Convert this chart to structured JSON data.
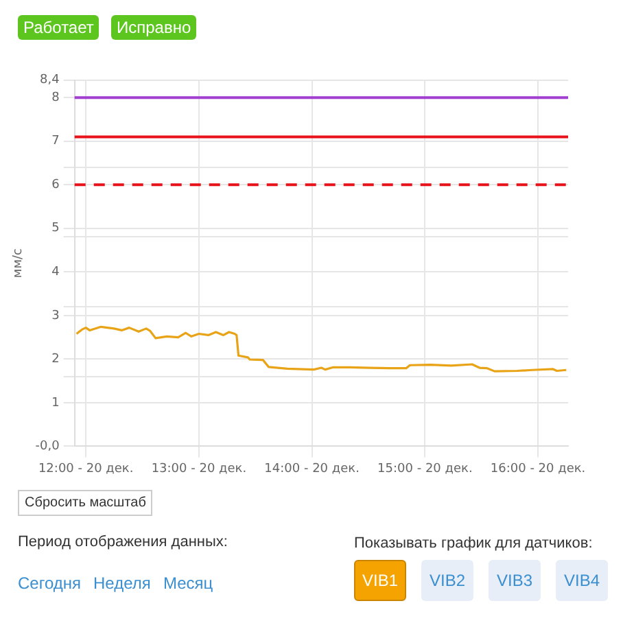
{
  "chart_data": {
    "type": "line",
    "ylabel": "мм/с",
    "x": [
      "--12-20T11:55",
      "--12-20T11:58",
      "--12-20T12:00",
      "--12-20T12:02",
      "--12-20T12:08",
      "--12-20T12:15",
      "--12-20T12:19",
      "--12-20T12:23",
      "--12-20T12:28",
      "--12-20T12:32",
      "--12-20T12:34",
      "--12-20T12:37",
      "--12-20T12:43",
      "--12-20T12:49",
      "--12-20T12:53",
      "--12-20T12:56",
      "--12-20T13:00",
      "--12-20T13:05",
      "--12-20T13:09",
      "--12-20T13:13",
      "--12-20T13:16",
      "--12-20T13:19",
      "--12-20T13:20",
      "--12-20T13:21",
      "--12-20T13:26",
      "--12-20T13:27",
      "--12-20T13:34",
      "--12-20T13:37",
      "--12-20T13:47",
      "--12-20T14:01",
      "--12-20T14:05",
      "--12-20T14:07",
      "--12-20T14:11",
      "--12-20T14:20",
      "--12-20T14:31",
      "--12-20T14:41",
      "--12-20T14:50",
      "--12-20T14:52",
      "--12-20T15:03",
      "--12-20T15:14",
      "--12-20T15:25",
      "--12-20T15:29",
      "--12-20T15:33",
      "--12-20T15:37",
      "--12-20T15:49",
      "--12-20T15:57",
      "--12-20T16:08",
      "--12-20T16:10",
      "--12-20T16:15"
    ],
    "series": [
      {
        "color": "#e8a317",
        "values": [
          2.58,
          2.68,
          2.72,
          2.66,
          2.74,
          2.7,
          2.66,
          2.72,
          2.63,
          2.7,
          2.65,
          2.48,
          2.52,
          2.5,
          2.6,
          2.52,
          2.58,
          2.55,
          2.62,
          2.55,
          2.62,
          2.58,
          2.55,
          2.08,
          2.04,
          1.99,
          1.98,
          1.82,
          1.78,
          1.76,
          1.8,
          1.76,
          1.81,
          1.81,
          1.8,
          1.79,
          1.79,
          1.86,
          1.87,
          1.85,
          1.88,
          1.8,
          1.79,
          1.72,
          1.73,
          1.75,
          1.77,
          1.73,
          1.75
        ]
      }
    ],
    "xlim": [
      "--12-20T11:54",
      "--12-20T16:16"
    ],
    "xticks": [
      {
        "value": "--12-20T12:00",
        "label": "12:00 - 20 дек."
      },
      {
        "value": "--12-20T13:00",
        "label": "13:00 - 20 дек."
      },
      {
        "value": "--12-20T14:00",
        "label": "14:00 - 20 дек."
      },
      {
        "value": "--12-20T15:00",
        "label": "15:00 - 20 дек."
      },
      {
        "value": "--12-20T16:00",
        "label": "16:00 - 20 дек."
      }
    ],
    "ylim": [
      0,
      8.4
    ],
    "yticks": [
      {
        "value": 0,
        "label": "-0,0"
      },
      1,
      {
        "value": 1.6,
        "label": null
      },
      2,
      3,
      {
        "value": 3.2,
        "label": null
      },
      4,
      {
        "value": 4.8,
        "label": null
      },
      5,
      6,
      {
        "value": 6.4,
        "label": null
      },
      7,
      8,
      {
        "value": 8.4,
        "label": "8,4"
      }
    ],
    "ref_lines": [
      {
        "axis": "y",
        "value": 8,
        "color": "#a23fd0",
        "line_style": "solid"
      },
      {
        "axis": "y",
        "value": 7.1,
        "color": "#e8131a",
        "line_style": "solid"
      },
      {
        "axis": "y",
        "value": 6,
        "color": "#e8131a",
        "line_style": "dashed"
      }
    ],
    "grid": true,
    "legend": false,
    "marker": "none",
    "line_style": "solid",
    "annotations": [
      "Работает",
      "Исправно",
      "Сбросить масштаб",
      "Период отображения данных:",
      "Сегодня",
      "Неделя",
      "Месяц",
      "Показывать график для датчиков:",
      "VIB1",
      "VIB2",
      "VIB3",
      "VIB4"
    ]
  }
}
